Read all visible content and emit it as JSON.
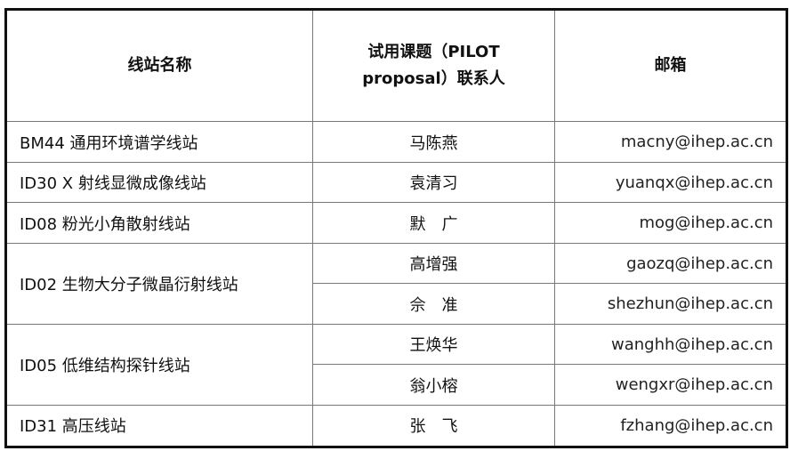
{
  "headers": {
    "station": "线站名称",
    "contact_line1": "试用课题（PILOT",
    "contact_line2": "proposal）联系人",
    "email": "邮箱"
  },
  "rows": [
    {
      "station": "BM44  通用环境谱学线站",
      "contacts": [
        {
          "name": "马陈燕",
          "email": "macny@ihep.ac.cn"
        }
      ]
    },
    {
      "station": "ID30 X 射线显微成像线站",
      "contacts": [
        {
          "name": "袁清习",
          "email": "yuanqx@ihep.ac.cn"
        }
      ]
    },
    {
      "station": "ID08  粉光小角散射线站",
      "contacts": [
        {
          "name": "默　广",
          "email": "mog@ihep.ac.cn"
        }
      ]
    },
    {
      "station": "ID02  生物大分子微晶衍射线站",
      "contacts": [
        {
          "name": "高增强",
          "email": "gaozq@ihep.ac.cn"
        },
        {
          "name": "佘　准",
          "email": "shezhun@ihep.ac.cn"
        }
      ]
    },
    {
      "station": "ID05  低维结构探针线站",
      "contacts": [
        {
          "name": "王焕华",
          "email": "wanghh@ihep.ac.cn"
        },
        {
          "name": "翁小榕",
          "email": "wengxr@ihep.ac.cn"
        }
      ]
    },
    {
      "station": "ID31  高压线站",
      "contacts": [
        {
          "name": "张　飞",
          "email": "fzhang@ihep.ac.cn"
        }
      ]
    }
  ]
}
